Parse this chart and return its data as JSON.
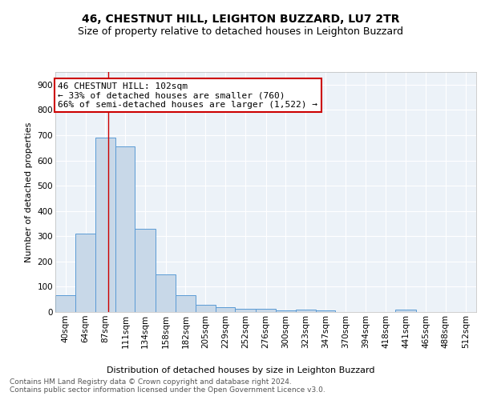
{
  "title": "46, CHESTNUT HILL, LEIGHTON BUZZARD, LU7 2TR",
  "subtitle": "Size of property relative to detached houses in Leighton Buzzard",
  "xlabel": "Distribution of detached houses by size in Leighton Buzzard",
  "ylabel": "Number of detached properties",
  "bar_edges": [
    40,
    64,
    87,
    111,
    134,
    158,
    182,
    205,
    229,
    252,
    276,
    300,
    323,
    347,
    370,
    394,
    418,
    441,
    465,
    488,
    512
  ],
  "bar_heights": [
    65,
    310,
    690,
    655,
    330,
    150,
    65,
    30,
    20,
    12,
    12,
    5,
    8,
    5,
    0,
    0,
    0,
    10,
    0,
    0,
    0
  ],
  "bar_color": "#c8d8e8",
  "bar_edge_color": "#5b9bd5",
  "property_line_x": 102,
  "property_line_color": "#cc0000",
  "annotation_line1": "46 CHESTNUT HILL: 102sqm",
  "annotation_line2": "← 33% of detached houses are smaller (760)",
  "annotation_line3": "66% of semi-detached houses are larger (1,522) →",
  "annotation_box_color": "#cc0000",
  "ylim": [
    0,
    950
  ],
  "yticks": [
    0,
    100,
    200,
    300,
    400,
    500,
    600,
    700,
    800,
    900
  ],
  "tick_labels": [
    "40sqm",
    "64sqm",
    "87sqm",
    "111sqm",
    "134sqm",
    "158sqm",
    "182sqm",
    "205sqm",
    "229sqm",
    "252sqm",
    "276sqm",
    "300sqm",
    "323sqm",
    "347sqm",
    "370sqm",
    "394sqm",
    "418sqm",
    "441sqm",
    "465sqm",
    "488sqm",
    "512sqm"
  ],
  "footer_text": "Contains HM Land Registry data © Crown copyright and database right 2024.\nContains public sector information licensed under the Open Government Licence v3.0.",
  "background_color": "#ecf2f8",
  "grid_color": "#ffffff",
  "title_fontsize": 10,
  "subtitle_fontsize": 9,
  "axis_label_fontsize": 8,
  "tick_fontsize": 7.5,
  "annotation_fontsize": 8,
  "footer_fontsize": 6.5
}
